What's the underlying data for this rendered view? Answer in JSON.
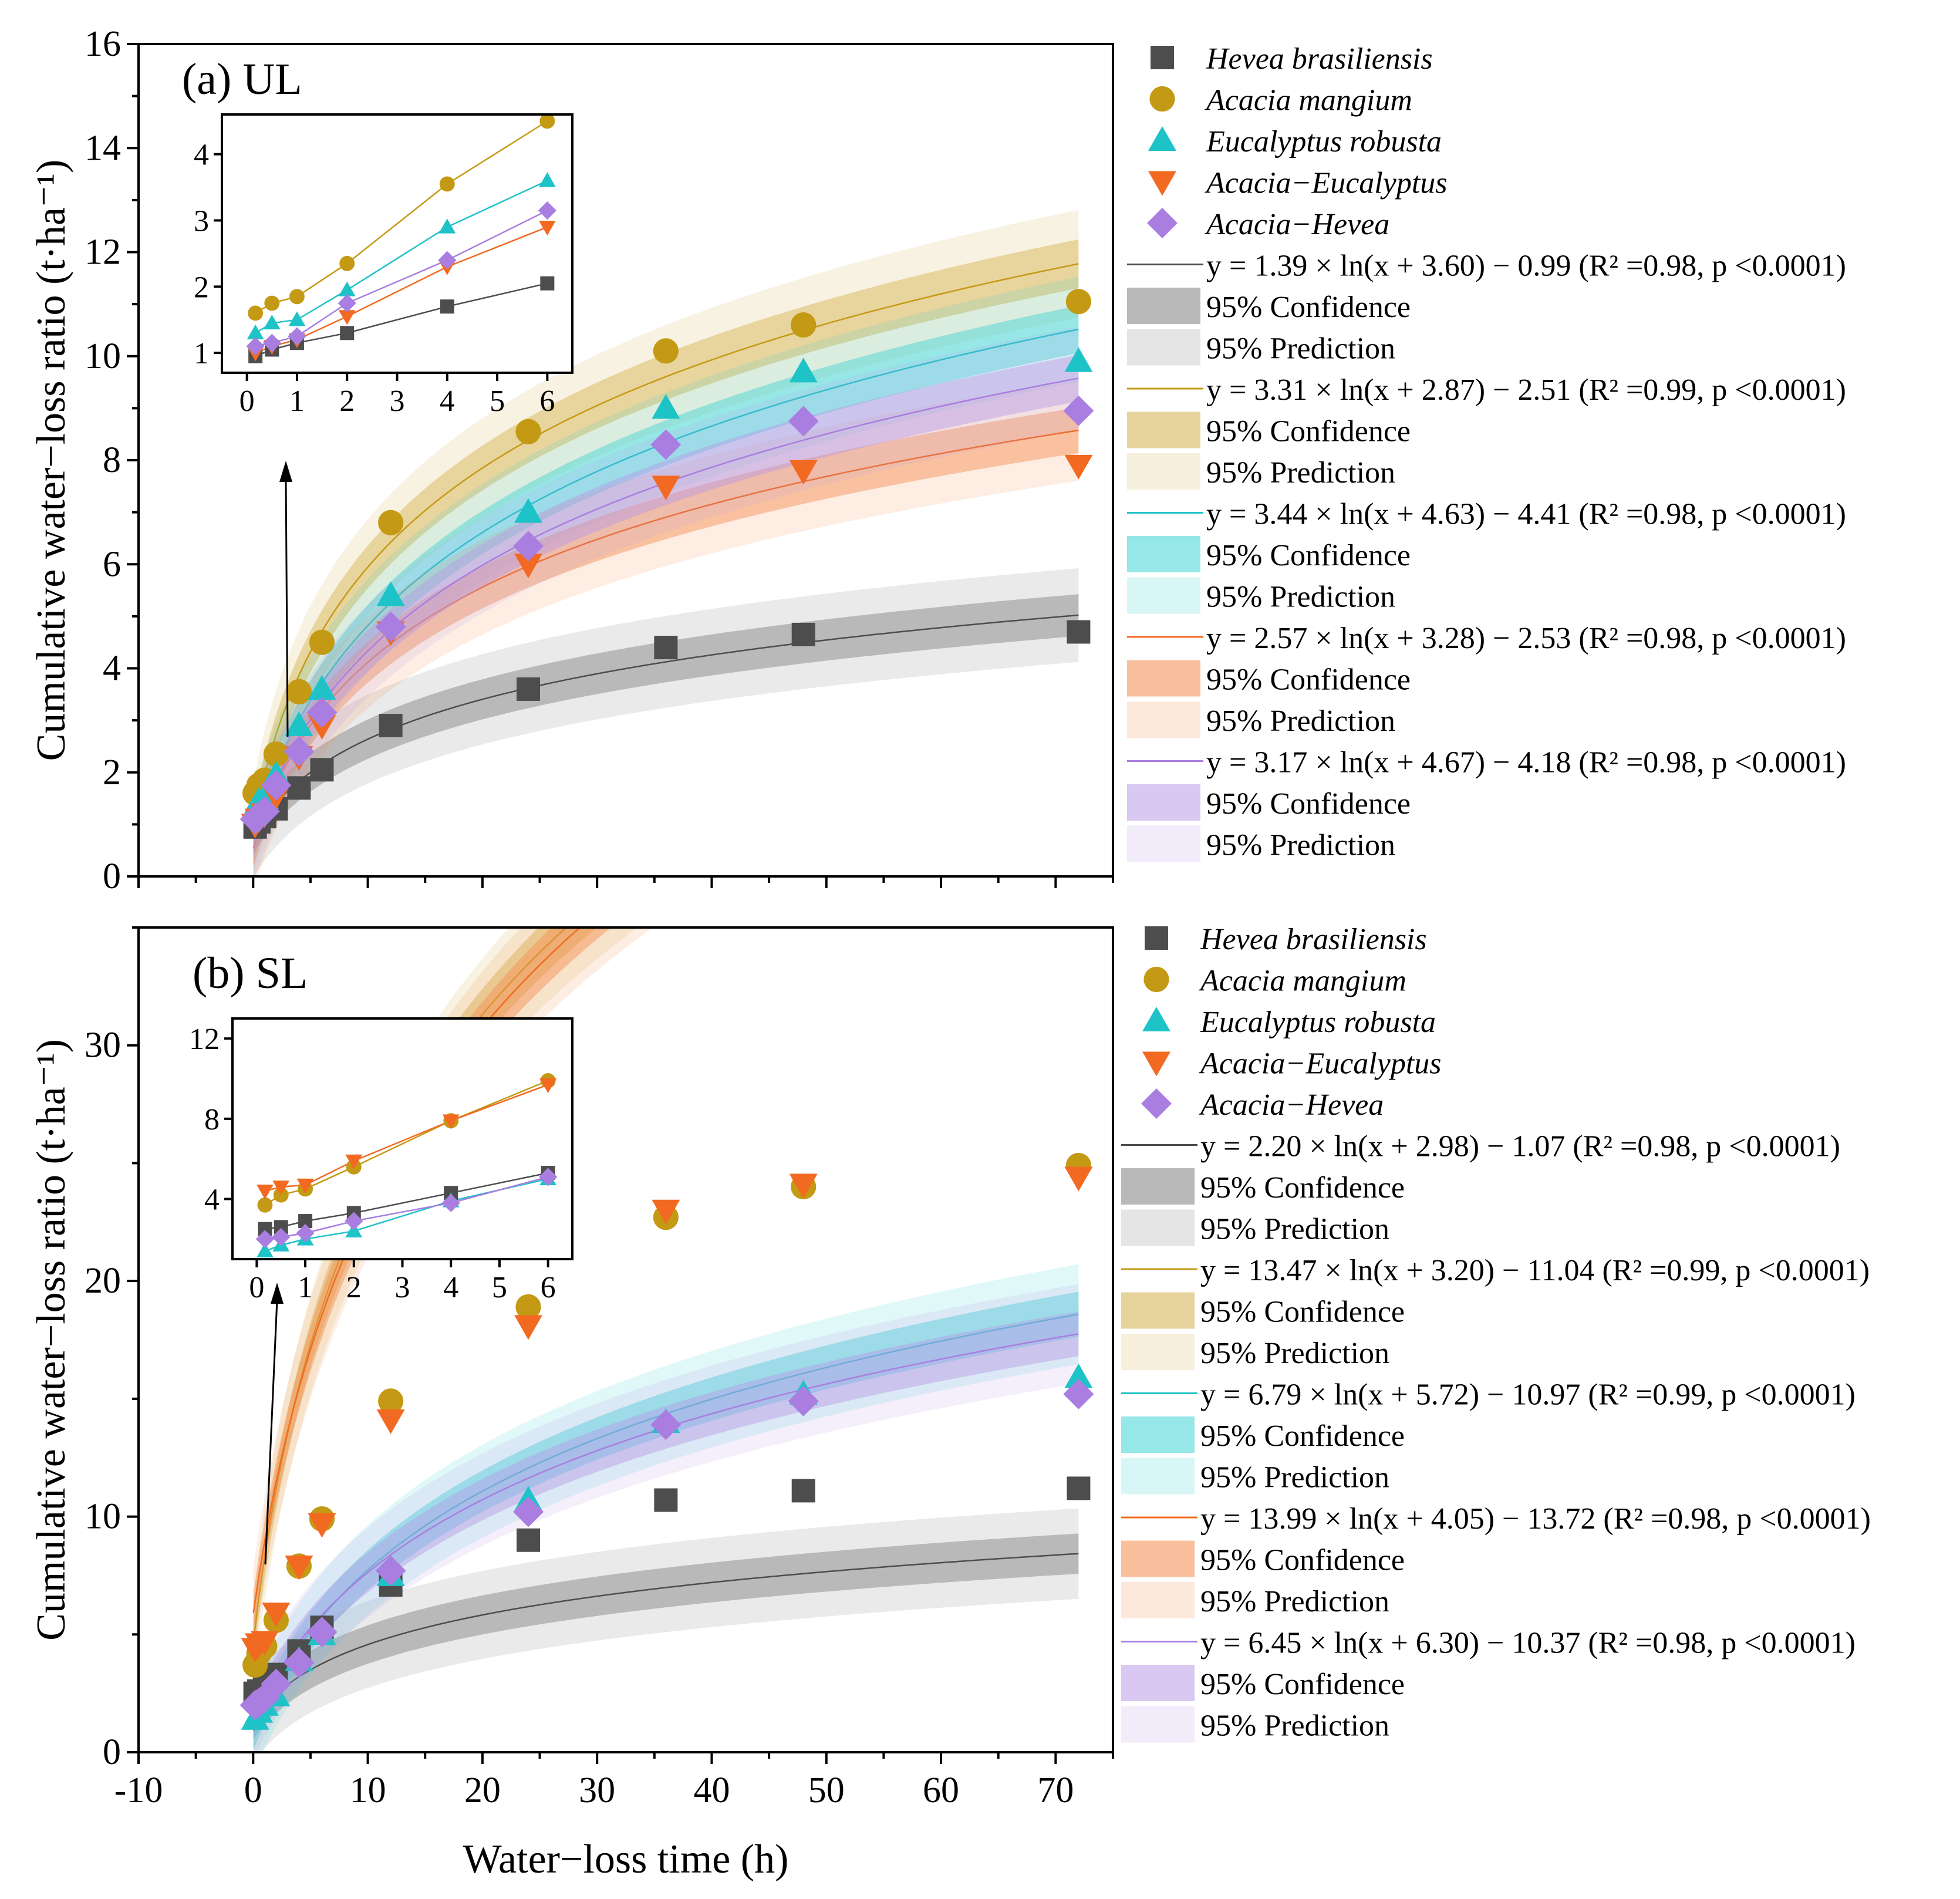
{
  "chart_data": [
    {
      "type": "scatter",
      "panel": "a",
      "title": "(a) UL",
      "xlabel": "Water−loss time (h)",
      "ylabel": "Cumulative water−loss ratio (t·ha⁻¹)",
      "xlim": [
        -10,
        75
      ],
      "ylim": [
        0,
        16
      ],
      "yticks": [
        0,
        2,
        4,
        6,
        8,
        10,
        12,
        14,
        16
      ],
      "x": [
        0.17,
        0.5,
        1,
        2,
        4,
        6,
        12,
        24,
        36,
        48,
        72
      ],
      "series": [
        {
          "name": "Hevea brasiliensis",
          "marker": "square",
          "color": "#4d4d4d",
          "band": "#7f7f7f",
          "values": [
            0.95,
            1.05,
            1.15,
            1.3,
            1.7,
            2.05,
            2.9,
            3.6,
            4.4,
            4.65,
            4.7
          ],
          "fit": {
            "a": 1.39,
            "b": 3.6,
            "c": -0.99
          },
          "equation": "y = 1.39 × ln(x + 3.60) − 0.99 (R² =0.98, p <0.0001)"
        },
        {
          "name": "Acacia mangium",
          "marker": "circle",
          "color": "#c49a14",
          "band": "#d4b04a",
          "values": [
            1.6,
            1.75,
            1.85,
            2.35,
            3.55,
            4.5,
            6.8,
            8.55,
            10.1,
            10.6,
            11.05
          ],
          "fit": {
            "a": 3.31,
            "b": 2.87,
            "c": -2.51
          },
          "equation": "y = 3.31 × ln(x + 2.87) − 2.51 (R² =0.99, p <0.0001)"
        },
        {
          "name": "Eucalyptus robusta",
          "marker": "triangle-up",
          "color": "#1ec3c8",
          "band": "#3fd3d3",
          "values": [
            1.3,
            1.45,
            1.5,
            1.95,
            2.9,
            3.6,
            5.4,
            7.0,
            9.0,
            9.7,
            9.9
          ],
          "fit": {
            "a": 3.44,
            "b": 4.63,
            "c": -4.41
          },
          "equation": "y = 3.44 × ln(x + 4.63) − 4.41 (R² =0.98, p <0.0001)"
        },
        {
          "name": "Acacia−Eucalyptus",
          "marker": "triangle-down",
          "color": "#f26a22",
          "band": "#f58c4e",
          "values": [
            1.0,
            1.1,
            1.2,
            1.55,
            2.3,
            2.9,
            4.7,
            6.0,
            7.5,
            7.8,
            7.9
          ],
          "fit": {
            "a": 2.57,
            "b": 3.28,
            "c": -2.53
          },
          "equation": "y = 2.57 × ln(x + 3.28) − 2.53 (R² =0.98, p <0.0001)"
        },
        {
          "name": "Acacia−Hevea",
          "marker": "diamond",
          "color": "#a97ee0",
          "band": "#b99ae6",
          "values": [
            1.1,
            1.15,
            1.25,
            1.75,
            2.4,
            3.15,
            4.8,
            6.35,
            8.3,
            8.75,
            8.95
          ],
          "fit": {
            "a": 3.17,
            "b": 4.67,
            "c": -4.18
          },
          "equation": "y = 3.17 × ln(x + 4.67) − 4.18 (R² =0.98, p <0.0001)"
        }
      ],
      "inset": {
        "xlim": [
          -0.5,
          6.5
        ],
        "ylim": [
          0.7,
          4.6
        ],
        "xticks": [
          0,
          1,
          2,
          3,
          4,
          5,
          6
        ],
        "yticks": [
          1,
          2,
          3,
          4
        ]
      },
      "legend_labels": {
        "confidence": "95% Confidence",
        "prediction": "95% Prediction"
      }
    },
    {
      "type": "scatter",
      "panel": "b",
      "title": "(b) SL",
      "xlabel": "Water−loss time (h)",
      "ylabel": "Cumulative water−loss ratio (t·ha⁻¹)",
      "xlim": [
        -10,
        75
      ],
      "ylim": [
        0,
        35
      ],
      "yticks": [
        0,
        10,
        20,
        30
      ],
      "xticks": [
        -10,
        0,
        10,
        20,
        30,
        40,
        50,
        60,
        70
      ],
      "x": [
        0.17,
        0.5,
        1,
        2,
        4,
        6,
        12,
        24,
        36,
        48,
        72
      ],
      "series": [
        {
          "name": "Hevea brasiliensis",
          "marker": "square",
          "color": "#4d4d4d",
          "band": "#7f7f7f",
          "values": [
            2.5,
            2.6,
            2.9,
            3.3,
            4.3,
            5.3,
            7.1,
            9.0,
            10.7,
            11.1,
            11.2
          ],
          "fit": {
            "a": 2.2,
            "b": 2.98,
            "c": -1.07
          },
          "equation": "y = 2.20 × ln(x + 2.98) − 1.07 (R² =0.98, p <0.0001)"
        },
        {
          "name": "Acacia mangium",
          "marker": "circle",
          "color": "#c49a14",
          "band": "#d4b04a",
          "values": [
            3.7,
            4.2,
            4.5,
            5.6,
            7.9,
            9.9,
            14.9,
            18.9,
            22.7,
            24.0,
            24.9
          ],
          "fit": {
            "a": 13.47,
            "b": 3.2,
            "c": -11.04
          },
          "equation": "y = 13.47 × ln(x + 3.20) − 11.04 (R² =0.99, p <0.0001)"
        },
        {
          "name": "Eucalyptus robusta",
          "marker": "triangle-up",
          "color": "#1ec3c8",
          "band": "#3fd3d3",
          "values": [
            1.4,
            1.7,
            2.0,
            2.4,
            3.9,
            5.0,
            7.5,
            10.7,
            14.0,
            15.2,
            15.9
          ],
          "fit": {
            "a": 6.79,
            "b": 5.72,
            "c": -10.97
          },
          "equation": "y = 6.79 × ln(x + 5.72) − 10.97 (R² =0.99, p <0.0001)"
        },
        {
          "name": "Acacia−Eucalyptus",
          "marker": "triangle-down",
          "color": "#f26a22",
          "band": "#f58c4e",
          "values": [
            4.4,
            4.6,
            4.7,
            5.9,
            7.9,
            9.7,
            14.1,
            18.1,
            23.0,
            24.1,
            24.4
          ],
          "fit": {
            "a": 13.99,
            "b": 4.05,
            "c": -13.72
          },
          "equation": "y = 13.99 × ln(x + 4.05) − 13.72 (R² =0.98, p <0.0001)"
        },
        {
          "name": "Acacia−Hevea",
          "marker": "diamond",
          "color": "#a97ee0",
          "band": "#b99ae6",
          "values": [
            2.0,
            2.1,
            2.3,
            2.9,
            3.8,
            5.1,
            7.7,
            10.2,
            13.9,
            14.9,
            15.2
          ],
          "fit": {
            "a": 6.45,
            "b": 6.3,
            "c": -10.37
          },
          "equation": "y = 6.45 × ln(x + 6.30) − 10.37 (R² =0.98, p <0.0001)"
        }
      ],
      "inset": {
        "xlim": [
          -0.5,
          6.5
        ],
        "ylim": [
          1,
          13
        ],
        "xticks": [
          0,
          1,
          2,
          3,
          4,
          5,
          6
        ],
        "yticks": [
          4,
          8,
          12
        ]
      },
      "legend_labels": {
        "confidence": "95% Confidence",
        "prediction": "95% Prediction"
      }
    }
  ]
}
